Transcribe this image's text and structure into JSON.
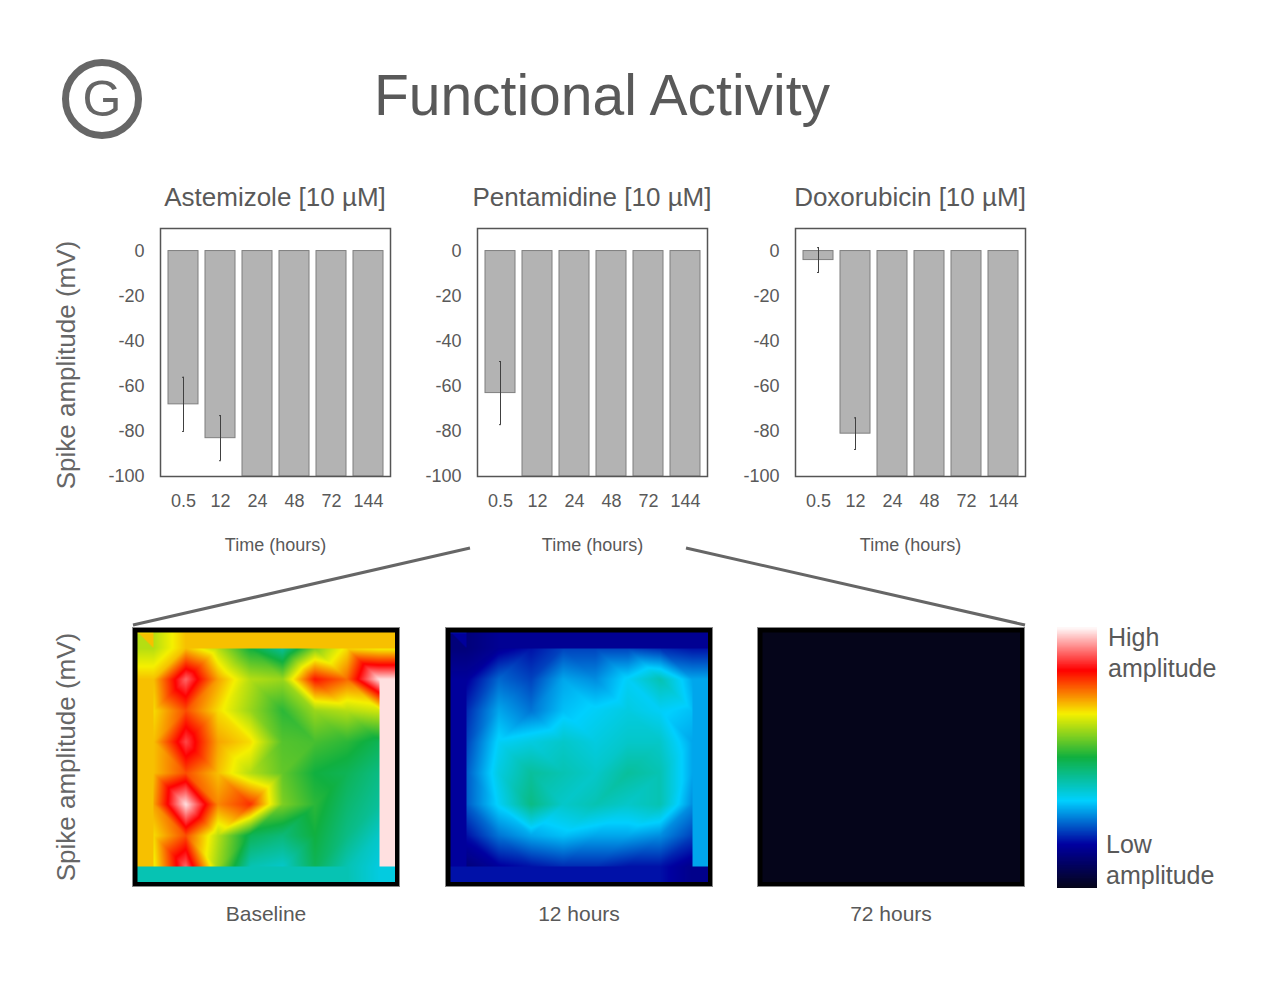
{
  "panel_label": "G",
  "title": "Functional Activity",
  "chart_data": [
    {
      "type": "bar",
      "title": "Astemizole [10 µM]",
      "y_label": "Spike amplitude (mV)",
      "x_label": "Time (hours)",
      "categories": [
        "0.5",
        "12",
        "24",
        "48",
        "72",
        "144"
      ],
      "values": [
        -68,
        -83,
        -100,
        -100,
        -100,
        -100
      ],
      "errors": [
        12,
        10,
        null,
        null,
        null,
        null
      ],
      "color": "#b3b3b3",
      "ylim": [
        -100,
        10
      ],
      "yticks": [
        0,
        -20,
        -40,
        -60,
        -80,
        -100
      ]
    },
    {
      "type": "bar",
      "title": "Pentamidine [10 µM]",
      "x_label": "Time (hours)",
      "categories": [
        "0.5",
        "12",
        "24",
        "48",
        "72",
        "144"
      ],
      "values": [
        -63,
        -100,
        -100,
        -100,
        -100,
        -100
      ],
      "errors": [
        14,
        null,
        null,
        null,
        null,
        null
      ],
      "color": "#b3b3b3",
      "ylim": [
        -100,
        10
      ],
      "yticks": [
        0,
        -20,
        -40,
        -60,
        -80,
        -100
      ]
    },
    {
      "type": "bar",
      "title": "Doxorubicin [10 µM]",
      "x_label": "Time (hours)",
      "categories": [
        "0.5",
        "12",
        "24",
        "48",
        "72",
        "144"
      ],
      "values": [
        -4,
        -81,
        -100,
        -100,
        -100,
        -100
      ],
      "errors": [
        5.5,
        7,
        null,
        null,
        null,
        null
      ],
      "color": "#b3b3b3",
      "ylim": [
        -100,
        10
      ],
      "yticks": [
        0,
        -20,
        -40,
        -60,
        -80,
        -100
      ]
    },
    {
      "type": "heatmap",
      "title": "Baseline",
      "y_label": "Spike amplitude (mV)",
      "cells": [
        [
          62,
          70,
          62,
          50,
          42,
          58,
          68,
          66
        ],
        [
          70,
          90,
          72,
          62,
          60,
          82,
          76,
          98
        ],
        [
          68,
          78,
          68,
          60,
          52,
          60,
          62,
          64
        ],
        [
          70,
          88,
          72,
          68,
          55,
          54,
          52,
          48
        ],
        [
          70,
          78,
          70,
          62,
          56,
          50,
          48,
          44
        ],
        [
          72,
          98,
          74,
          80,
          58,
          52,
          46,
          42
        ],
        [
          68,
          78,
          62,
          48,
          45,
          50,
          44,
          38
        ],
        [
          66,
          90,
          60,
          40,
          38,
          48,
          40,
          36
        ]
      ]
    },
    {
      "type": "heatmap",
      "title": "12 hours",
      "cells": [
        [
          12,
          15,
          18,
          22,
          22,
          22,
          20,
          18
        ],
        [
          16,
          25,
          22,
          30,
          28,
          34,
          40,
          30
        ],
        [
          20,
          30,
          26,
          32,
          34,
          36,
          34,
          32
        ],
        [
          22,
          34,
          36,
          38,
          36,
          38,
          38,
          30
        ],
        [
          24,
          36,
          42,
          40,
          38,
          42,
          40,
          30
        ],
        [
          24,
          34,
          44,
          38,
          40,
          38,
          40,
          28
        ],
        [
          18,
          26,
          30,
          32,
          30,
          30,
          28,
          22
        ],
        [
          12,
          16,
          18,
          20,
          20,
          18,
          18,
          14
        ]
      ]
    },
    {
      "type": "heatmap",
      "title": "72 hours",
      "cells": [
        [
          0,
          0,
          0,
          0,
          0,
          0,
          0,
          0
        ],
        [
          0,
          0,
          0,
          0,
          0,
          0,
          0,
          0
        ],
        [
          0,
          0,
          0,
          0,
          0,
          0,
          0,
          0
        ],
        [
          0,
          0,
          0,
          0,
          0,
          0,
          0,
          0
        ],
        [
          0,
          0,
          0,
          0,
          0,
          0,
          0,
          0
        ],
        [
          0,
          0,
          0,
          0,
          0,
          0,
          0,
          0
        ],
        [
          0,
          0,
          0,
          0,
          0,
          0,
          0,
          0
        ],
        [
          0,
          0,
          0,
          0,
          0,
          0,
          0,
          0
        ]
      ]
    }
  ],
  "colorbar": {
    "range": [
      0,
      100
    ],
    "high_label": "High amplitude",
    "low_label": "Low amplitude"
  }
}
